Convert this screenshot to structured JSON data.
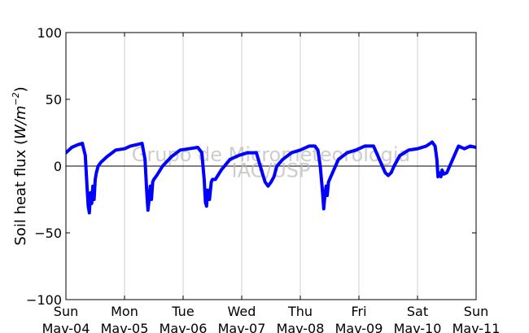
{
  "chart_data": {
    "type": "line",
    "title": "",
    "xlabel": "",
    "ylabel": "Soil heat flux (W/m^-2)",
    "ylabel_parts": {
      "text": "Soil heat flux (",
      "unit_base": "W/m",
      "unit_exp": "−2",
      "close": ")"
    },
    "ylim": [
      -100,
      100
    ],
    "yticks": [
      100,
      50,
      0,
      -50,
      -100
    ],
    "ytick_labels": [
      "100",
      "50",
      "0",
      "−50",
      "−100"
    ],
    "xlim": [
      0,
      7
    ],
    "xticks": [
      {
        "day": "Sun",
        "date": "Mav-04"
      },
      {
        "day": "Mon",
        "date": "Mav-05"
      },
      {
        "day": "Tue",
        "date": "Mav-06"
      },
      {
        "day": "Wed",
        "date": "Mav-07"
      },
      {
        "day": "Thu",
        "date": "Mav-08"
      },
      {
        "day": "Fri",
        "date": "Mav-09"
      },
      {
        "day": "Sat",
        "date": "Mav-10"
      },
      {
        "day": "Sun",
        "date": "Mav-11"
      }
    ],
    "grid": "vertical",
    "zero_line": true,
    "watermark": [
      "Grupo de Micrometeorologia",
      "IAG/USP"
    ],
    "series": [
      {
        "color": "#0000ff",
        "x": [
          0.0,
          0.1,
          0.2,
          0.28,
          0.33,
          0.36,
          0.38,
          0.4,
          0.42,
          0.44,
          0.46,
          0.48,
          0.5,
          0.52,
          0.55,
          0.6,
          0.7,
          0.85,
          1.0,
          1.1,
          1.2,
          1.3,
          1.35,
          1.38,
          1.4,
          1.42,
          1.44,
          1.46,
          1.48,
          1.5,
          1.55,
          1.65,
          1.8,
          1.95,
          2.1,
          2.25,
          2.32,
          2.36,
          2.38,
          2.4,
          2.42,
          2.45,
          2.48,
          2.5,
          2.55,
          2.65,
          2.8,
          2.95,
          3.1,
          3.25,
          3.35,
          3.4,
          3.45,
          3.5,
          3.55,
          3.6,
          3.7,
          3.85,
          4.0,
          4.15,
          4.25,
          4.3,
          4.34,
          4.38,
          4.4,
          4.42,
          4.44,
          4.46,
          4.48,
          4.5,
          4.55,
          4.65,
          4.8,
          4.95,
          5.1,
          5.25,
          5.35,
          5.45,
          5.5,
          5.55,
          5.6,
          5.7,
          5.85,
          6.0,
          6.15,
          6.25,
          6.3,
          6.33,
          6.35,
          6.37,
          6.4,
          6.42,
          6.45,
          6.5,
          6.55,
          6.6,
          6.65,
          6.7,
          6.8,
          6.9,
          7.0
        ],
        "y": [
          10,
          14,
          16,
          17,
          8,
          -15,
          -30,
          -35,
          -20,
          -28,
          -15,
          -25,
          -10,
          -5,
          0,
          3,
          7,
          12,
          13,
          15,
          16,
          17,
          5,
          -20,
          -33,
          -25,
          -15,
          -25,
          -12,
          -10,
          -7,
          0,
          7,
          12,
          13,
          14,
          10,
          -10,
          -27,
          -30,
          -18,
          -25,
          -12,
          -10,
          -10,
          -3,
          5,
          8,
          10,
          10,
          -5,
          -12,
          -15,
          -12,
          -8,
          0,
          5,
          10,
          12,
          15,
          15,
          12,
          0,
          -20,
          -32,
          -22,
          -15,
          -22,
          -12,
          -10,
          -5,
          5,
          10,
          12,
          15,
          15,
          5,
          -5,
          -7,
          -5,
          0,
          8,
          12,
          13,
          15,
          18,
          15,
          5,
          -8,
          -5,
          -8,
          -3,
          -6,
          -5,
          0,
          5,
          10,
          15,
          13,
          15,
          14
        ]
      }
    ]
  }
}
